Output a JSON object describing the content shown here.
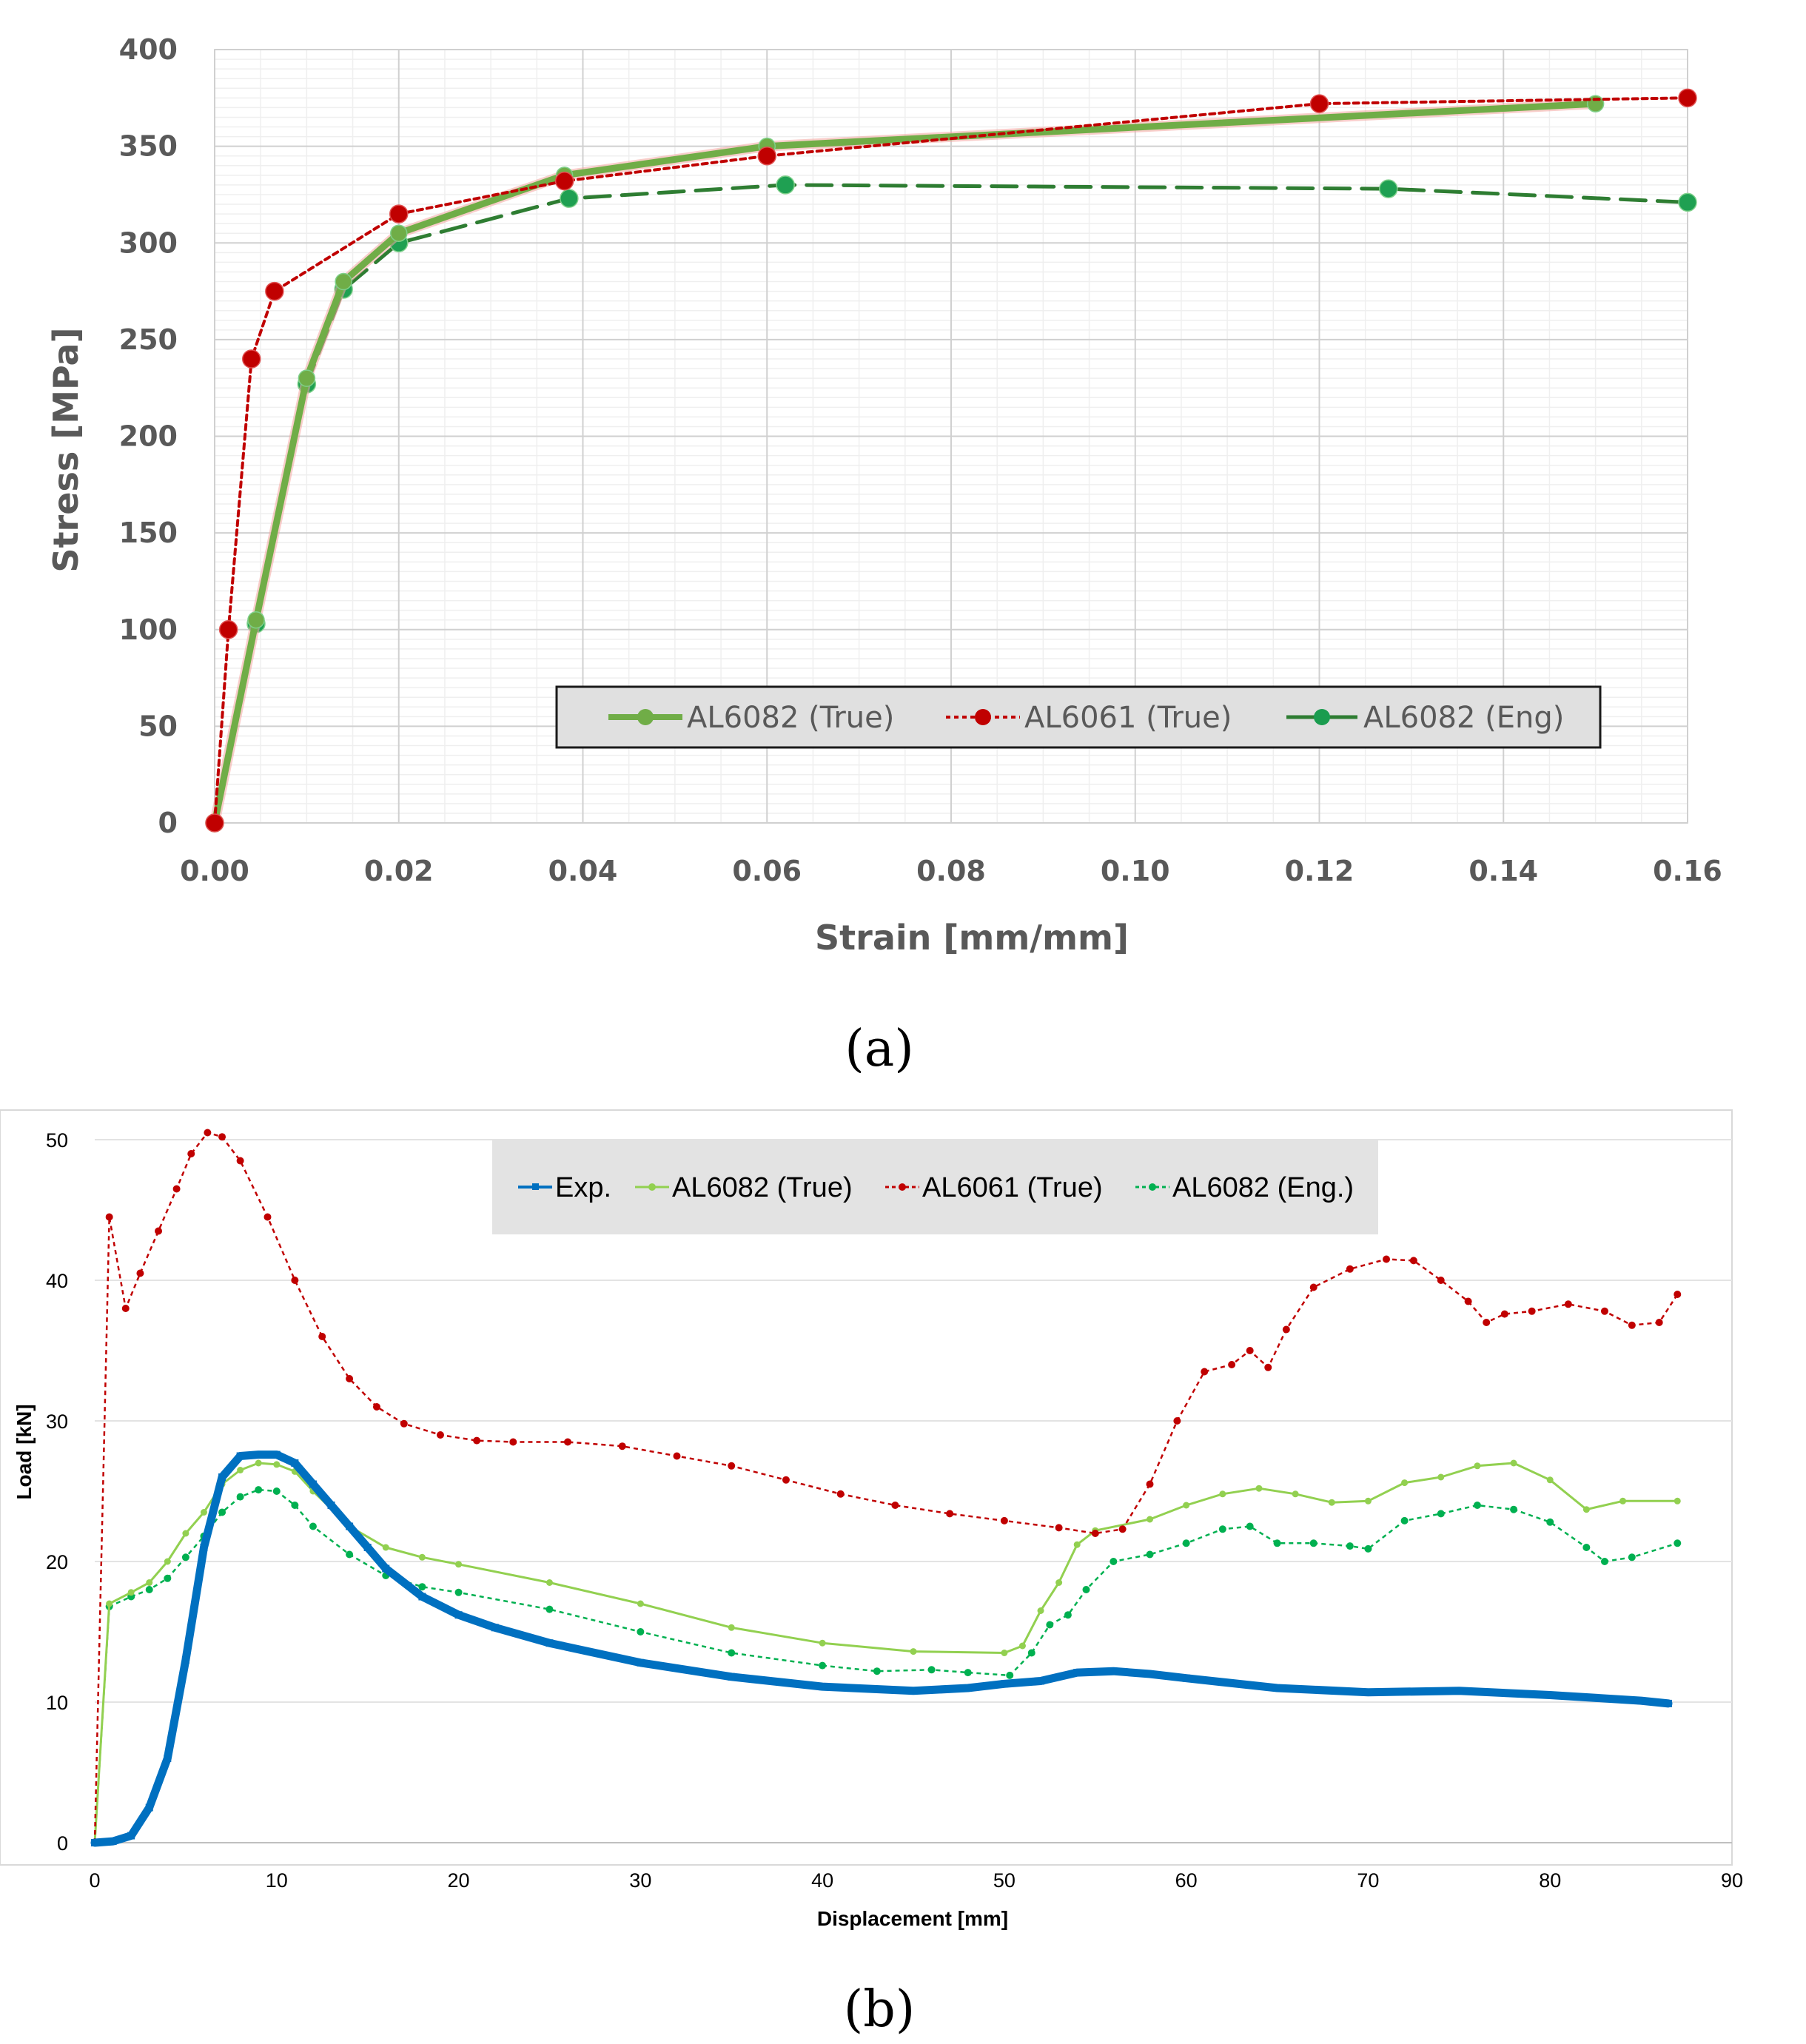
{
  "chart_data": [
    {
      "panel": "(a)",
      "type": "line",
      "xlabel": "Strain [mm/mm]",
      "ylabel": "Stress [MPa]",
      "xlim": [
        0,
        0.16
      ],
      "ylim": [
        0,
        400
      ],
      "x_ticks": [
        "0.00",
        "0.02",
        "0.04",
        "0.06",
        "0.08",
        "0.10",
        "0.12",
        "0.14",
        "0.16"
      ],
      "y_ticks": [
        "0",
        "50",
        "100",
        "150",
        "200",
        "250",
        "300",
        "350",
        "400"
      ],
      "grid": true,
      "legend_position": "bottom-right",
      "series": [
        {
          "name": "AL6082 (True)",
          "color": "#70ad47",
          "style": "solid-thick",
          "x": [
            0,
            0.0045,
            0.01,
            0.014,
            0.02,
            0.038,
            0.06,
            0.15
          ],
          "y": [
            0,
            105,
            230,
            280,
            305,
            335,
            350,
            372
          ]
        },
        {
          "name": "AL6061 (True)",
          "color": "#c00000",
          "style": "dotted",
          "x": [
            0,
            0.0015,
            0.004,
            0.0065,
            0.02,
            0.038,
            0.06,
            0.12,
            0.16
          ],
          "y": [
            0,
            100,
            240,
            275,
            315,
            332,
            345,
            372,
            375
          ]
        },
        {
          "name": "AL6082 (Eng)",
          "color": "#2e7d32",
          "style": "dashed",
          "x": [
            0,
            0.0045,
            0.01,
            0.014,
            0.02,
            0.0385,
            0.062,
            0.1275,
            0.16
          ],
          "y": [
            0,
            103,
            227,
            276,
            300,
            323,
            330,
            328,
            321
          ]
        }
      ]
    },
    {
      "panel": "(b)",
      "type": "line",
      "xlabel": "Displacement [mm]",
      "ylabel": "Load [kN]",
      "xlim": [
        0,
        90
      ],
      "ylim": [
        0,
        50
      ],
      "x_ticks": [
        "0",
        "10",
        "20",
        "30",
        "40",
        "50",
        "60",
        "70",
        "80",
        "90"
      ],
      "y_ticks": [
        "0",
        "10",
        "20",
        "30",
        "40",
        "50"
      ],
      "grid": true,
      "legend_position": "top-center",
      "series": [
        {
          "name": "Exp.",
          "color": "#0070c0",
          "style": "solid-thick",
          "x": [
            0,
            1,
            2,
            3,
            4,
            5,
            6,
            7,
            8,
            9,
            10,
            11,
            12,
            13,
            14,
            15,
            16,
            18,
            20,
            22,
            25,
            30,
            35,
            40,
            45,
            48,
            50,
            52,
            54,
            56,
            58,
            60,
            65,
            70,
            75,
            80,
            85,
            86.5
          ],
          "y": [
            0,
            0.1,
            0.5,
            2.5,
            6,
            13,
            21,
            26,
            27.5,
            27.6,
            27.6,
            27,
            25.5,
            24,
            22.5,
            21,
            19.5,
            17.5,
            16.2,
            15.3,
            14.2,
            12.8,
            11.8,
            11.1,
            10.8,
            11,
            11.3,
            11.5,
            12.1,
            12.2,
            12,
            11.7,
            11,
            10.7,
            10.8,
            10.5,
            10.1,
            9.9
          ]
        },
        {
          "name": "AL6082 (True)",
          "color": "#92d050",
          "style": "solid-dots",
          "x": [
            0,
            0.8,
            2,
            3,
            4,
            5,
            6,
            7,
            8,
            9,
            10,
            11,
            12,
            14,
            16,
            18,
            20,
            25,
            30,
            35,
            40,
            45,
            50,
            51,
            52,
            53,
            54,
            55,
            58,
            60,
            62,
            64,
            66,
            68,
            70,
            72,
            74,
            76,
            78,
            80,
            82,
            84,
            87
          ],
          "y": [
            0,
            17,
            17.8,
            18.5,
            20,
            22,
            23.5,
            25.5,
            26.5,
            27,
            26.9,
            26.4,
            25,
            22.5,
            21,
            20.3,
            19.8,
            18.5,
            17,
            15.3,
            14.2,
            13.6,
            13.5,
            14,
            16.5,
            18.5,
            21.2,
            22.2,
            23,
            24,
            24.8,
            25.2,
            24.8,
            24.2,
            24.3,
            25.6,
            26,
            26.8,
            27,
            25.8,
            23.7,
            24.3,
            24.3
          ]
        },
        {
          "name": "AL6061 (True)",
          "color": "#c00000",
          "style": "dotted",
          "x": [
            0,
            0.8,
            1.7,
            2.5,
            3.5,
            4.5,
            5.3,
            6.2,
            7,
            8,
            9.5,
            11,
            12.5,
            14,
            15.5,
            17,
            19,
            21,
            23,
            26,
            29,
            32,
            35,
            38,
            41,
            44,
            47,
            50,
            53,
            55,
            56.5,
            58,
            59.5,
            61,
            62.5,
            63.5,
            64.5,
            65.5,
            67,
            69,
            71,
            72.5,
            74,
            75.5,
            76.5,
            77.5,
            79,
            81,
            83,
            84.5,
            86,
            87
          ],
          "y": [
            0,
            44.5,
            38,
            40.5,
            43.5,
            46.5,
            49,
            50.5,
            50.2,
            48.5,
            44.5,
            40,
            36,
            33,
            31,
            29.8,
            29,
            28.6,
            28.5,
            28.5,
            28.2,
            27.5,
            26.8,
            25.8,
            24.8,
            24,
            23.4,
            22.9,
            22.4,
            22,
            22.3,
            25.5,
            30,
            33.5,
            34,
            35,
            33.8,
            36.5,
            39.5,
            40.8,
            41.5,
            41.4,
            40,
            38.5,
            37,
            37.6,
            37.8,
            38.3,
            37.8,
            36.8,
            37,
            39
          ]
        },
        {
          "name": "AL6082 (Eng.)",
          "color": "#00b050",
          "style": "dotted",
          "x": [
            0,
            0.8,
            2,
            3,
            4,
            5,
            6,
            7,
            8,
            9,
            10,
            11,
            12,
            14,
            16,
            18,
            20,
            25,
            30,
            35,
            40,
            43,
            46,
            48,
            50.3,
            51.5,
            52.5,
            53.5,
            54.5,
            56,
            58,
            60,
            62,
            63.5,
            65,
            67,
            69,
            70,
            72,
            74,
            76,
            78,
            80,
            82,
            83,
            84.5,
            87
          ],
          "y": [
            0,
            16.8,
            17.5,
            18,
            18.8,
            20.3,
            21.8,
            23.5,
            24.6,
            25.1,
            25,
            24,
            22.5,
            20.5,
            19,
            18.2,
            17.8,
            16.6,
            15,
            13.5,
            12.6,
            12.2,
            12.3,
            12.1,
            11.9,
            13.5,
            15.5,
            16.2,
            18,
            20,
            20.5,
            21.3,
            22.3,
            22.5,
            21.3,
            21.3,
            21.1,
            20.9,
            22.9,
            23.4,
            24,
            23.7,
            22.8,
            21,
            20,
            20.3,
            21.3
          ]
        }
      ]
    }
  ]
}
